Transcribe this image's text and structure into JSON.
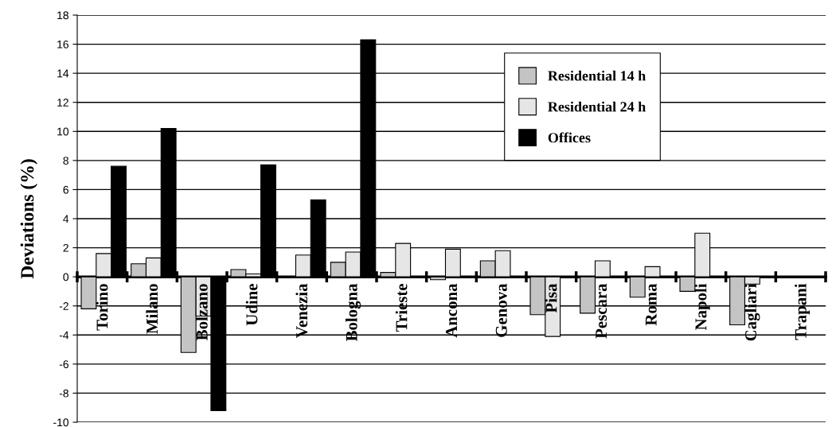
{
  "chart_data": {
    "type": "bar",
    "ylabel": "Deviations (%)",
    "categories": [
      "Torino",
      "Milano",
      "Bolzano",
      "Udine",
      "Venezia",
      "Bologna",
      "Trieste",
      "Ancona",
      "Genova",
      "Pisa",
      "Pescara",
      "Roma",
      "Napoli",
      "Cagliari",
      "Trapani"
    ],
    "series": [
      {
        "name": "Residential 14 h",
        "color": "#c4c4c4",
        "values": [
          -2.2,
          0.9,
          -5.2,
          0.5,
          null,
          1.0,
          0.3,
          -0.2,
          1.1,
          -2.6,
          -2.5,
          -1.4,
          -1.0,
          -3.3,
          null
        ]
      },
      {
        "name": "Residential 24 h",
        "color": "#e6e6e6",
        "values": [
          1.6,
          1.3,
          -2.7,
          0.2,
          1.5,
          1.7,
          2.3,
          1.9,
          1.8,
          -4.1,
          1.1,
          0.7,
          3.0,
          -0.5,
          null
        ]
      },
      {
        "name": "Offices",
        "color": "#000000",
        "values": [
          7.6,
          10.2,
          -9.2,
          7.7,
          5.3,
          16.3,
          null,
          null,
          null,
          null,
          null,
          null,
          null,
          null,
          null
        ]
      }
    ],
    "ylim": [
      -10,
      18
    ],
    "yticks": [
      -10,
      -8,
      -6,
      -4,
      -2,
      0,
      2,
      4,
      6,
      8,
      10,
      12,
      14,
      16,
      18
    ],
    "grid": "y",
    "legend": "top right"
  }
}
